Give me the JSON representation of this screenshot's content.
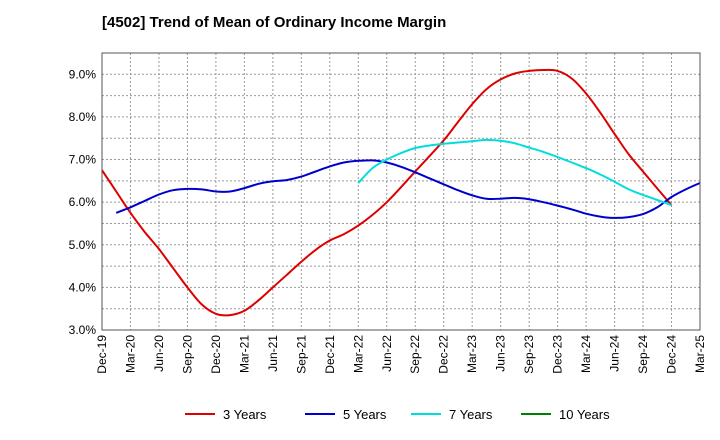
{
  "chart_data": {
    "type": "line",
    "title": "[4502]  Trend of Mean of Ordinary Income Margin",
    "xlabel": "",
    "ylabel": "",
    "x_ticks": [
      "Dec-19",
      "Mar-20",
      "Jun-20",
      "Sep-20",
      "Dec-20",
      "Mar-21",
      "Jun-21",
      "Sep-21",
      "Dec-21",
      "Mar-22",
      "Jun-22",
      "Sep-22",
      "Dec-22",
      "Mar-23",
      "Jun-23",
      "Sep-23",
      "Dec-23",
      "Mar-24",
      "Jun-24",
      "Sep-24",
      "Dec-24",
      "Mar-25"
    ],
    "y_ticks": [
      "3.0%",
      "4.0%",
      "5.0%",
      "6.0%",
      "7.0%",
      "8.0%",
      "9.0%"
    ],
    "ylim": [
      3.0,
      9.5
    ],
    "grid": true,
    "legend_position": "bottom",
    "series": [
      {
        "name": "3 Years",
        "color": "#dd0000",
        "values": [
          6.75,
          6.25,
          5.75,
          5.3,
          4.9,
          4.45,
          4.0,
          3.6,
          3.38,
          3.35,
          3.45,
          3.7,
          4.0,
          4.3,
          4.6,
          4.88,
          5.1,
          5.25,
          5.45,
          5.7,
          6.0,
          6.35,
          6.72,
          7.08,
          7.45,
          7.88,
          8.3,
          8.65,
          8.88,
          9.02,
          9.08,
          9.1,
          9.08,
          8.9,
          8.55,
          8.1,
          7.6,
          7.12,
          6.72,
          6.32,
          5.93
        ]
      },
      {
        "name": "5 Years",
        "color": "#0000cc",
        "values": [
          null,
          5.75,
          5.88,
          6.03,
          6.18,
          6.28,
          6.31,
          6.3,
          6.25,
          6.25,
          6.33,
          6.43,
          6.49,
          6.52,
          6.6,
          6.72,
          6.84,
          6.93,
          6.97,
          6.98,
          6.93,
          6.83,
          6.7,
          6.56,
          6.42,
          6.28,
          6.16,
          6.08,
          6.08,
          6.1,
          6.07,
          6.0,
          5.92,
          5.83,
          5.73,
          5.66,
          5.63,
          5.65,
          5.72,
          5.88,
          6.12,
          6.3,
          6.45
        ]
      },
      {
        "name": "7 Years",
        "color": "#00dddd",
        "values": [
          null,
          null,
          null,
          null,
          null,
          null,
          null,
          null,
          null,
          null,
          null,
          null,
          null,
          null,
          null,
          null,
          null,
          null,
          6.45,
          6.8,
          7.0,
          7.15,
          7.27,
          7.33,
          7.37,
          7.4,
          7.43,
          7.46,
          7.44,
          7.38,
          7.28,
          7.18,
          7.06,
          6.93,
          6.8,
          6.65,
          6.48,
          6.3,
          6.17,
          6.05,
          5.93
        ]
      },
      {
        "name": "10 Years",
        "color": "#008000",
        "values": []
      }
    ]
  }
}
